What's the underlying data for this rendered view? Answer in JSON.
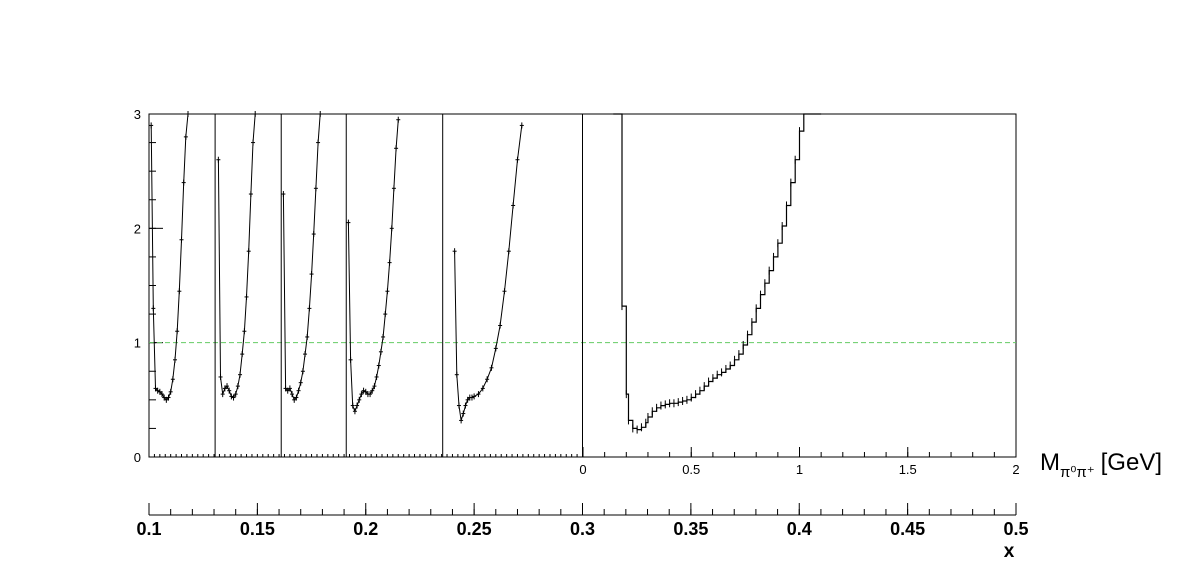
{
  "chart_data": [
    {
      "type": "line",
      "title": "",
      "xlabel": "M",
      "xlabel_sub": "π⁰π⁺",
      "xlabel_unit": "[GeV]",
      "ylabel": "",
      "ylim": [
        0,
        3
      ],
      "xlim": [
        0,
        2
      ],
      "y_ticks": [
        "0",
        "1",
        "2",
        "3"
      ],
      "x_ticks": [
        "0",
        "0.5",
        "1",
        "1.5",
        "2"
      ],
      "reference_line": {
        "y": 1,
        "color": "#66cc66",
        "style": "dashed"
      },
      "series": [
        {
          "x": [
            0.14,
            0.15,
            0.18,
            0.2,
            0.21,
            0.23,
            0.25,
            0.27,
            0.29,
            0.3,
            0.32,
            0.34,
            0.36,
            0.38,
            0.4,
            0.42,
            0.44,
            0.46,
            0.48,
            0.5,
            0.52,
            0.54,
            0.56,
            0.58,
            0.6,
            0.62,
            0.64,
            0.66,
            0.68,
            0.7,
            0.72,
            0.74,
            0.76,
            0.78,
            0.8,
            0.82,
            0.84,
            0.86,
            0.88,
            0.9,
            0.92,
            0.94,
            0.96,
            0.98,
            1.0,
            1.02,
            1.04,
            1.06,
            1.08,
            1.1
          ],
          "values": [
            3.0,
            3.0,
            1.32,
            0.55,
            0.32,
            0.25,
            0.24,
            0.26,
            0.3,
            0.35,
            0.4,
            0.43,
            0.45,
            0.46,
            0.47,
            0.47,
            0.48,
            0.49,
            0.5,
            0.52,
            0.55,
            0.58,
            0.62,
            0.66,
            0.69,
            0.72,
            0.74,
            0.77,
            0.8,
            0.85,
            0.9,
            0.98,
            1.07,
            1.18,
            1.3,
            1.42,
            1.52,
            1.63,
            1.75,
            1.87,
            2.02,
            2.2,
            2.4,
            2.6,
            2.85,
            3.0,
            3.0,
            3.0,
            3.0,
            3.0
          ]
        }
      ]
    },
    {
      "type": "scatter",
      "title": "",
      "xlabel": "x",
      "ylabel": "",
      "xlim": [
        0.1,
        0.5
      ],
      "ylim": [
        0,
        3
      ],
      "x_ticks": [
        "0.1",
        "0.15",
        "0.2",
        "0.25",
        "0.3",
        "0.35",
        "0.4",
        "0.45",
        "0.5"
      ],
      "panel_boundaries_x": [
        0.1,
        0.1305,
        0.161,
        0.191,
        0.2355,
        0.3
      ],
      "series": [
        {
          "x": [
            0.101,
            0.102,
            0.103,
            0.104,
            0.105,
            0.106,
            0.107,
            0.108,
            0.109,
            0.11,
            0.111,
            0.112,
            0.113,
            0.114,
            0.115,
            0.116,
            0.117,
            0.118
          ],
          "values": [
            2.9,
            1.3,
            0.6,
            0.58,
            0.57,
            0.55,
            0.52,
            0.5,
            0.52,
            0.57,
            0.68,
            0.85,
            1.1,
            1.45,
            1.9,
            2.4,
            2.8,
            3.0
          ]
        },
        {
          "x": [
            0.132,
            0.133,
            0.134,
            0.135,
            0.136,
            0.137,
            0.138,
            0.139,
            0.14,
            0.141,
            0.142,
            0.143,
            0.144,
            0.145,
            0.146,
            0.147,
            0.148,
            0.149
          ],
          "values": [
            2.6,
            0.7,
            0.55,
            0.6,
            0.62,
            0.58,
            0.53,
            0.52,
            0.55,
            0.62,
            0.72,
            0.9,
            1.1,
            1.4,
            1.8,
            2.3,
            2.75,
            3.0
          ]
        },
        {
          "x": [
            0.162,
            0.163,
            0.164,
            0.165,
            0.166,
            0.167,
            0.168,
            0.169,
            0.17,
            0.171,
            0.172,
            0.173,
            0.174,
            0.175,
            0.176,
            0.177,
            0.178,
            0.179
          ],
          "values": [
            2.3,
            0.6,
            0.58,
            0.6,
            0.55,
            0.5,
            0.52,
            0.58,
            0.65,
            0.75,
            0.9,
            1.05,
            1.3,
            1.6,
            1.95,
            2.35,
            2.75,
            3.0
          ]
        },
        {
          "x": [
            0.192,
            0.193,
            0.194,
            0.195,
            0.196,
            0.197,
            0.198,
            0.199,
            0.2,
            0.201,
            0.202,
            0.203,
            0.204,
            0.205,
            0.206,
            0.207,
            0.208,
            0.209,
            0.21,
            0.211,
            0.212,
            0.213,
            0.214,
            0.215
          ],
          "values": [
            2.05,
            0.85,
            0.45,
            0.4,
            0.45,
            0.5,
            0.55,
            0.58,
            0.57,
            0.55,
            0.55,
            0.58,
            0.62,
            0.7,
            0.8,
            0.92,
            1.05,
            1.25,
            1.45,
            1.7,
            2.0,
            2.35,
            2.7,
            2.95
          ]
        },
        {
          "x": [
            0.241,
            0.242,
            0.243,
            0.244,
            0.245,
            0.246,
            0.247,
            0.248,
            0.249,
            0.25,
            0.252,
            0.254,
            0.256,
            0.258,
            0.26,
            0.262,
            0.264,
            0.266,
            0.268,
            0.27,
            0.272
          ],
          "values": [
            1.8,
            0.72,
            0.45,
            0.32,
            0.38,
            0.45,
            0.5,
            0.52,
            0.52,
            0.53,
            0.55,
            0.6,
            0.68,
            0.78,
            0.95,
            1.15,
            1.45,
            1.8,
            2.2,
            2.6,
            2.9
          ]
        }
      ]
    }
  ],
  "colors": {
    "axis": "#000000",
    "data": "#000000",
    "reference": "#66cc66"
  }
}
